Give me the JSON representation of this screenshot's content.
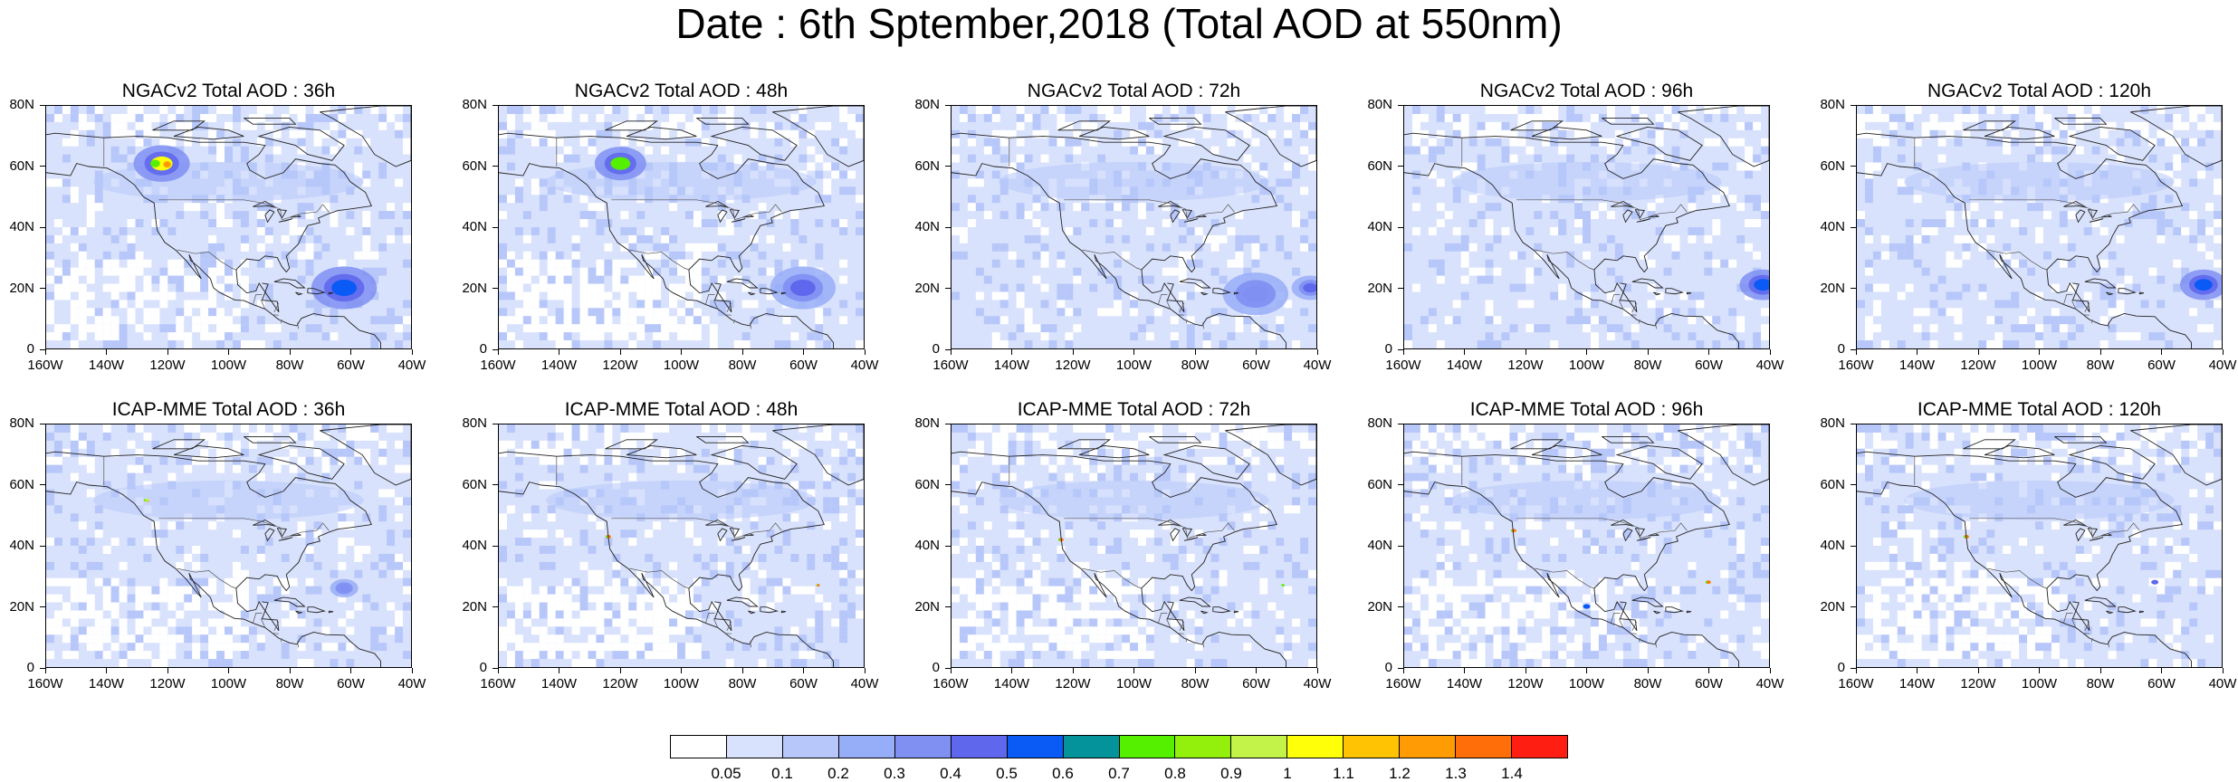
{
  "title": "Date : 6th Sptember,2018 (Total AOD at 550nm)",
  "panels": [
    {
      "title": "NGACv2 Total AOD : 36h",
      "model": "NGACv2",
      "hour": 36,
      "plumes": [
        {
          "lon": -122,
          "lat": 61,
          "level": 11,
          "size": 12
        },
        {
          "lon": -62,
          "lat": 20,
          "level": 6,
          "size": 14
        }
      ],
      "whiteBands": true
    },
    {
      "title": "NGACv2 Total AOD : 48h",
      "model": "NGACv2",
      "hour": 48,
      "plumes": [
        {
          "lon": -120,
          "lat": 61,
          "level": 8,
          "size": 11
        },
        {
          "lon": -60,
          "lat": 20,
          "level": 5,
          "size": 14
        }
      ],
      "whiteBands": true
    },
    {
      "title": "NGACv2 Total AOD : 72h",
      "model": "NGACv2",
      "hour": 72,
      "plumes": [
        {
          "lon": -60,
          "lat": 18,
          "level": 4,
          "size": 14
        },
        {
          "lon": -42,
          "lat": 20,
          "level": 5,
          "size": 8
        }
      ],
      "whiteBands": false
    },
    {
      "title": "NGACv2 Total AOD : 96h",
      "model": "NGACv2",
      "hour": 96,
      "plumes": [
        {
          "lon": -42,
          "lat": 21,
          "level": 6,
          "size": 10
        }
      ],
      "whiteBands": false
    },
    {
      "title": "NGACv2 Total AOD : 120h",
      "model": "NGACv2",
      "hour": 120,
      "plumes": [
        {
          "lon": -46,
          "lat": 21,
          "level": 6,
          "size": 10
        }
      ],
      "whiteBands": false
    },
    {
      "title": "ICAP-MME Total AOD : 36h",
      "model": "ICAP-MME",
      "hour": 36,
      "plumes": [
        {
          "lon": -127,
          "lat": 55,
          "level": 10,
          "size": 3
        },
        {
          "lon": -62,
          "lat": 26,
          "level": 4,
          "size": 6
        }
      ],
      "whiteBands": true
    },
    {
      "title": "ICAP-MME Total AOD : 48h",
      "model": "ICAP-MME",
      "hour": 48,
      "plumes": [
        {
          "lon": -124,
          "lat": 43,
          "level": 14,
          "size": 3
        },
        {
          "lon": -55,
          "lat": 27,
          "level": 14,
          "size": 2
        }
      ],
      "whiteBands": true
    },
    {
      "title": "ICAP-MME Total AOD : 72h",
      "model": "ICAP-MME",
      "hour": 72,
      "plumes": [
        {
          "lon": -124,
          "lat": 42,
          "level": 14,
          "size": 3
        },
        {
          "lon": -51,
          "lat": 27,
          "level": 8,
          "size": 2
        }
      ],
      "whiteBands": true
    },
    {
      "title": "ICAP-MME Total AOD : 96h",
      "model": "ICAP-MME",
      "hour": 96,
      "plumes": [
        {
          "lon": -124,
          "lat": 45,
          "level": 14,
          "size": 3
        },
        {
          "lon": -60,
          "lat": 28,
          "level": 14,
          "size": 3
        },
        {
          "lon": -100,
          "lat": 20,
          "level": 6,
          "size": 4
        }
      ],
      "whiteBands": true
    },
    {
      "title": "ICAP-MME Total AOD : 120h",
      "model": "ICAP-MME",
      "hour": 120,
      "plumes": [
        {
          "lon": -124,
          "lat": 43,
          "level": 14,
          "size": 3
        },
        {
          "lon": -62,
          "lat": 28,
          "level": 5,
          "size": 4
        }
      ],
      "whiteBands": true
    }
  ],
  "axes": {
    "lat_labels": [
      "80N",
      "60N",
      "40N",
      "20N",
      "0"
    ],
    "lat_values": [
      80,
      60,
      40,
      20,
      0
    ],
    "lon_labels": [
      "160W",
      "140W",
      "120W",
      "100W",
      "80W",
      "60W",
      "40W"
    ],
    "lon_values": [
      -160,
      -140,
      -120,
      -100,
      -80,
      -60,
      -40
    ]
  },
  "colorbar": {
    "colors": [
      "#ffffff",
      "#d9e2fc",
      "#b7c7f9",
      "#96adf7",
      "#7f8ff2",
      "#5f68ed",
      "#0a5af5",
      "#05939b",
      "#55f000",
      "#92f00c",
      "#c3f348",
      "#ffff0a",
      "#ffc304",
      "#ff9b04",
      "#ff6e08",
      "#ff1e12"
    ],
    "labels": [
      "0.05",
      "0.1",
      "0.2",
      "0.3",
      "0.4",
      "0.5",
      "0.6",
      "0.7",
      "0.8",
      "0.9",
      "1",
      "1.1",
      "1.2",
      "1.3",
      "1.4"
    ]
  }
}
